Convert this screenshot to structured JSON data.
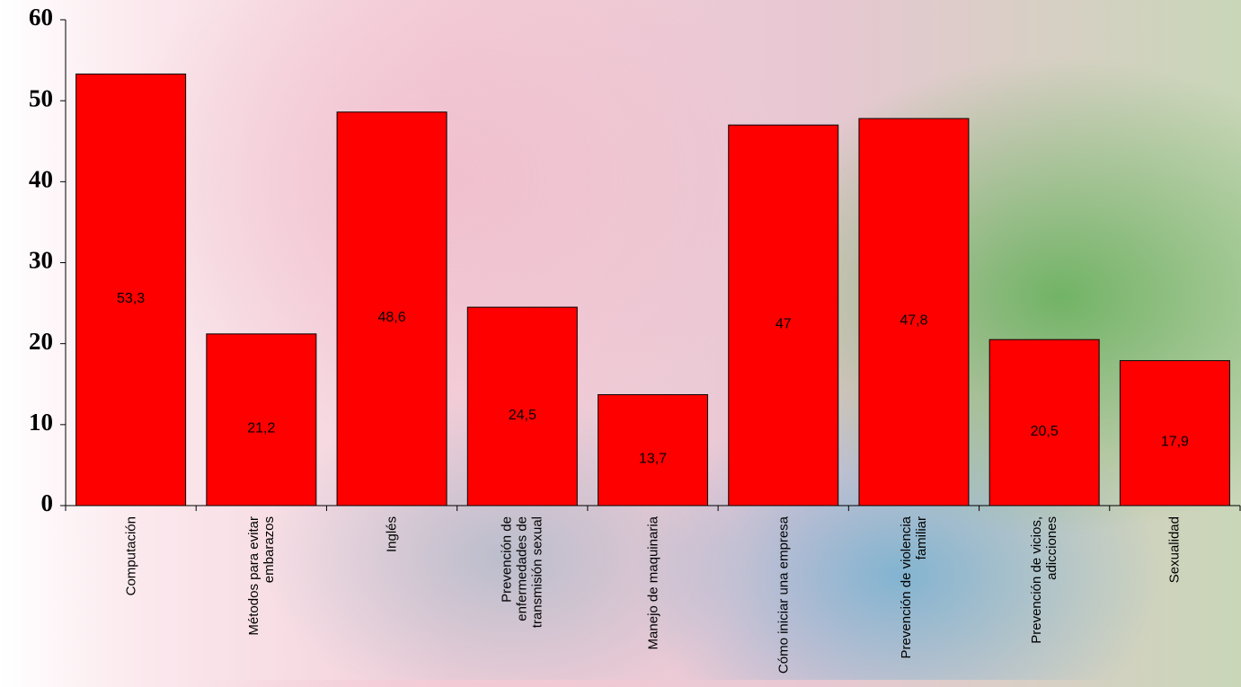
{
  "chart_data": {
    "type": "bar",
    "categories": [
      "Computación",
      "Métodos para evitar embarazos",
      "Inglés",
      "Prevención de enfermedades de transmisión sexual",
      "Manejo de maquinaria",
      "Cómo iniciar una empresa",
      "Prevención de violencia familiar",
      "Prevención de vicios, adicciones",
      "Sexualidad"
    ],
    "values": [
      53.3,
      21.2,
      48.6,
      24.5,
      13.7,
      47,
      47.8,
      20.5,
      17.9
    ],
    "value_labels": [
      "53,3",
      "21,2",
      "48,6",
      "24,5",
      "13,7",
      "47",
      "47,8",
      "20,5",
      "17,9"
    ],
    "color": "#ff0000",
    "ylim": [
      0,
      60
    ],
    "yticks": [
      0,
      10,
      20,
      30,
      40,
      50,
      60
    ]
  }
}
